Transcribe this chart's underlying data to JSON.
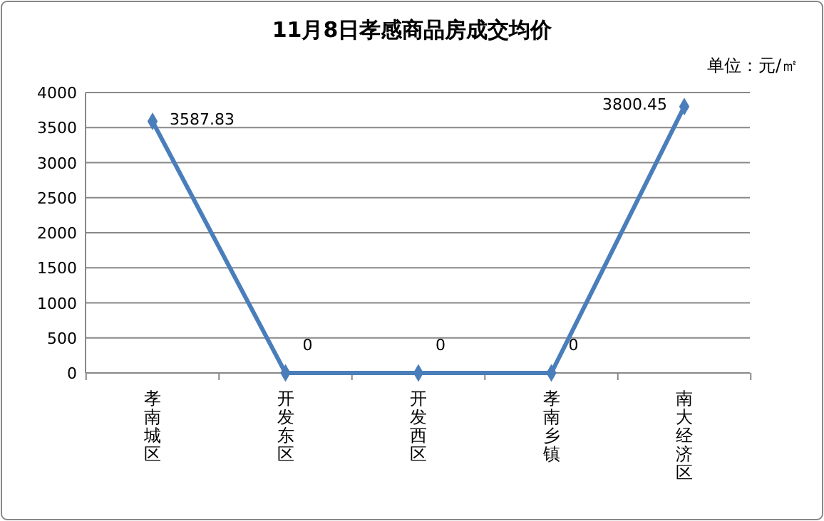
{
  "chart_data": {
    "type": "line",
    "title": "11月8日孝感商品房成交均价",
    "annotations": [
      "单位：元/㎡"
    ],
    "categories": [
      "孝南城区",
      "开发东区",
      "开发西区",
      "孝南乡镇",
      "南大经济区"
    ],
    "series": [
      {
        "color": "#4a7ebb",
        "values": [
          3587.83,
          0,
          0,
          0,
          3800.45
        ]
      }
    ],
    "ylim": [
      0,
      4000
    ],
    "yticks": [
      0,
      500,
      1000,
      1500,
      2000,
      2500,
      3000,
      3500,
      4000
    ],
    "grid": "y",
    "marker": "diamond",
    "line_style": "solid",
    "data_labels": true
  }
}
